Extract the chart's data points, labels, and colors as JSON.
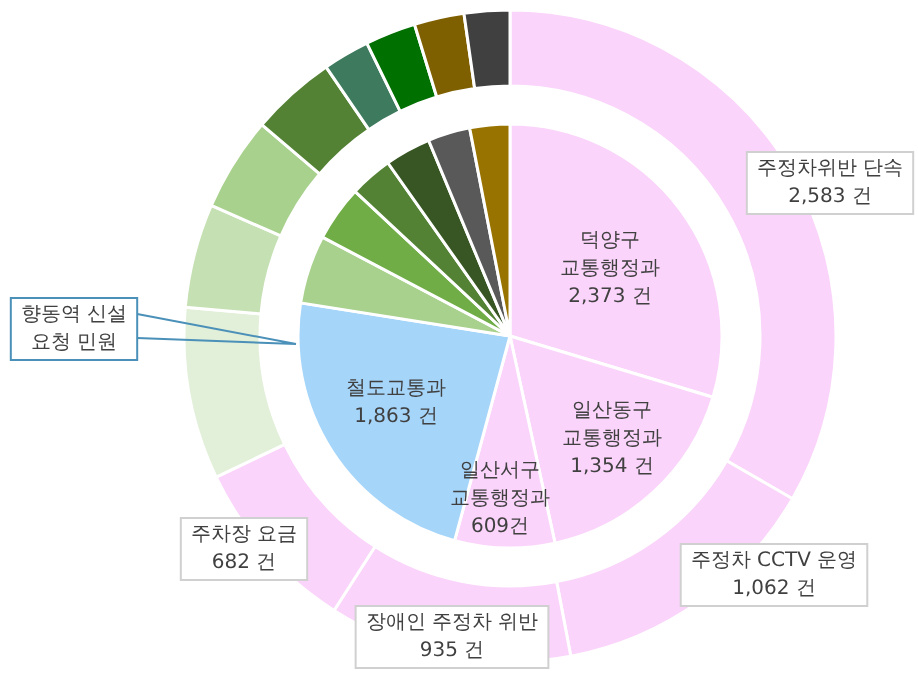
{
  "chart_data": [
    {
      "type": "donut",
      "categories": [
        "주정차위반 단속",
        "주정차 CCTV 운영",
        "장애인 주정차 위반",
        "주차장 요금",
        "향동역 신설 요청 민원",
        null,
        null,
        null,
        null,
        null,
        null,
        null
      ],
      "values": [
        2583,
        1062,
        935,
        682,
        662,
        399,
        362,
        328,
        179,
        194,
        192,
        175
      ],
      "value_labels": [
        "2,583 건",
        "1,062 건",
        "935 건",
        "682 건",
        null,
        null,
        null,
        null,
        null,
        null,
        null,
        null
      ],
      "colors": [
        "#fad4fa",
        "#fad4fa",
        "#fad4fa",
        "#fad4fa",
        "#e2efd9",
        "#c5e0b3",
        "#a9d18e",
        "#548235",
        "#3e7b5e",
        "#007000",
        "#7f6000",
        "#404040"
      ]
    },
    {
      "type": "pie",
      "categories": [
        "덕양구 교통행정과",
        "일산동구 교통행정과",
        "일산서구 교통행정과",
        "철도교통과",
        null,
        null,
        null,
        null,
        null,
        null
      ],
      "values": [
        2373,
        1354,
        609,
        1863,
        418,
        338,
        262,
        280,
        258,
        244
      ],
      "value_labels": [
        "2,373 건",
        "1,354 건",
        "609건",
        "1,863 건",
        null,
        null,
        null,
        null,
        null,
        null
      ],
      "colors": [
        "#fad4fa",
        "#fad4fa",
        "#fad4fa",
        "#a6d5fa",
        "#a9d18e",
        "#70ad47",
        "#548235",
        "#375623",
        "#595959",
        "#997300"
      ]
    }
  ]
}
